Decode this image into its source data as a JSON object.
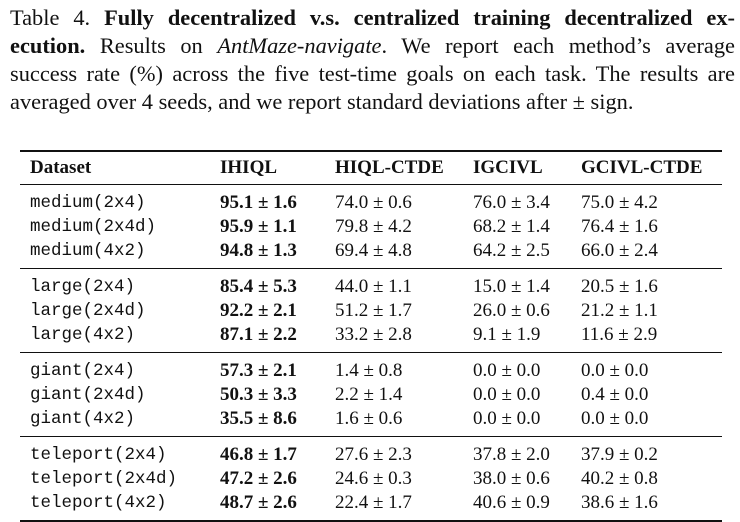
{
  "caption": {
    "label": "Table 4.",
    "title": "Fully decentralized v.s. centralized training decentralized ex­ecution.",
    "text_before_env": "Results on",
    "env_name": "AntMaze-navigate",
    "text_after_env": ". We report each method’s average success rate (%) across the five test-time goals on each task. The results are averaged over 4 seeds, and we report standard deviations after ± sign."
  },
  "table": {
    "headers": [
      "Dataset",
      "IHIQL",
      "HIQL-CTDE",
      "IGCIVL",
      "GCIVL-CTDE"
    ],
    "groups": [
      {
        "rows": [
          {
            "dataset": "medium(2x4)",
            "values": [
              "95.1 ± 1.6",
              "74.0 ± 0.6",
              "76.0 ± 3.4",
              "75.0 ± 4.2"
            ]
          },
          {
            "dataset": "medium(2x4d)",
            "values": [
              "95.9 ± 1.1",
              "79.8 ± 4.2",
              "68.2 ± 1.4",
              "76.4 ± 1.6"
            ]
          },
          {
            "dataset": "medium(4x2)",
            "values": [
              "94.8 ± 1.3",
              "69.4 ± 4.8",
              "64.2 ± 2.5",
              "66.0 ± 2.4"
            ]
          }
        ]
      },
      {
        "rows": [
          {
            "dataset": "large(2x4)",
            "values": [
              "85.4 ± 5.3",
              "44.0 ± 1.1",
              "15.0 ± 1.4",
              "20.5 ± 1.6"
            ]
          },
          {
            "dataset": "large(2x4d)",
            "values": [
              "92.2 ± 2.1",
              "51.2 ± 1.7",
              "26.0 ± 0.6",
              "21.2 ± 1.1"
            ]
          },
          {
            "dataset": "large(4x2)",
            "values": [
              "87.1 ± 2.2",
              "33.2 ± 2.8",
              "9.1 ± 1.9",
              "11.6 ± 2.9"
            ]
          }
        ]
      },
      {
        "rows": [
          {
            "dataset": "giant(2x4)",
            "values": [
              "57.3 ± 2.1",
              "1.4 ± 0.8",
              "0.0 ± 0.0",
              "0.0 ± 0.0"
            ]
          },
          {
            "dataset": "giant(2x4d)",
            "values": [
              "50.3 ± 3.3",
              "2.2 ± 1.4",
              "0.0 ± 0.0",
              "0.4 ± 0.0"
            ]
          },
          {
            "dataset": "giant(4x2)",
            "values": [
              "35.5 ± 8.6",
              "1.6 ± 0.6",
              "0.0 ± 0.0",
              "0.0 ± 0.0"
            ]
          }
        ]
      },
      {
        "rows": [
          {
            "dataset": "teleport(2x4)",
            "values": [
              "46.8 ± 1.7",
              "27.6 ± 2.3",
              "37.8 ± 2.0",
              "37.9 ± 0.2"
            ]
          },
          {
            "dataset": "teleport(2x4d)",
            "values": [
              "47.2 ± 2.6",
              "24.6 ± 0.3",
              "38.0 ± 0.6",
              "40.2 ± 0.8"
            ]
          },
          {
            "dataset": "teleport(4x2)",
            "values": [
              "48.7 ± 2.6",
              "22.4 ± 1.7",
              "40.6 ± 0.9",
              "38.6 ± 1.6"
            ]
          }
        ]
      }
    ]
  }
}
